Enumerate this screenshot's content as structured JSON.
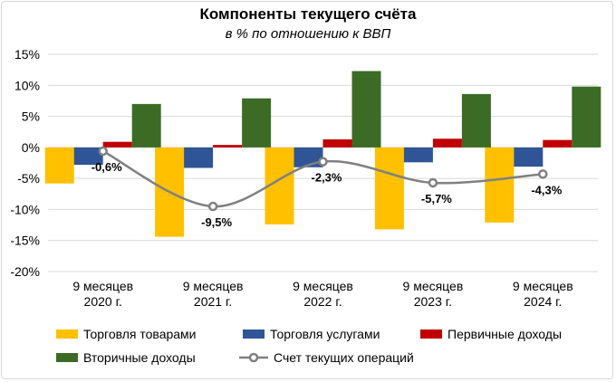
{
  "chart_data": {
    "type": "bar",
    "title": "Компоненты текущего счёта",
    "subtitle": "в % по отношению к ВВП",
    "ylim": [
      -20,
      15
    ],
    "yticks": [
      15,
      10,
      5,
      0,
      -5,
      -10,
      -15,
      -20
    ],
    "ytick_labels": [
      "15%",
      "10%",
      "5%",
      "0%",
      "-5%",
      "-10%",
      "-15%",
      "-20%"
    ],
    "categories": [
      [
        "9 месяцев",
        "2020 г."
      ],
      [
        "9 месяцев",
        "2021 г."
      ],
      [
        "9 месяцев",
        "2022 г."
      ],
      [
        "9 месяцев",
        "2023 г."
      ],
      [
        "9 месяцев",
        "2024 г."
      ]
    ],
    "series": [
      {
        "name": "Торговля товарами",
        "color": "#FFC000",
        "values": [
          -5.8,
          -14.4,
          -12.4,
          -13.2,
          -12.1
        ]
      },
      {
        "name": "Торговля услугами",
        "color": "#2F5597",
        "values": [
          -2.8,
          -3.3,
          -3.2,
          -2.4,
          -3.1
        ]
      },
      {
        "name": "Первичные доходы",
        "color": "#C00000",
        "values": [
          0.9,
          0.4,
          1.3,
          1.4,
          1.2
        ]
      },
      {
        "name": "Вторичные доходы",
        "color": "#3B6B25",
        "values": [
          7.0,
          7.9,
          12.3,
          8.6,
          9.8
        ]
      }
    ],
    "line": {
      "name": "Счет текущих операций",
      "color": "#808080",
      "values": [
        -0.6,
        -9.5,
        -2.3,
        -5.7,
        -4.3
      ],
      "labels": [
        "-0,6%",
        "-9,5%",
        "-2,3%",
        "-5,7%",
        "-4,3%"
      ]
    }
  }
}
